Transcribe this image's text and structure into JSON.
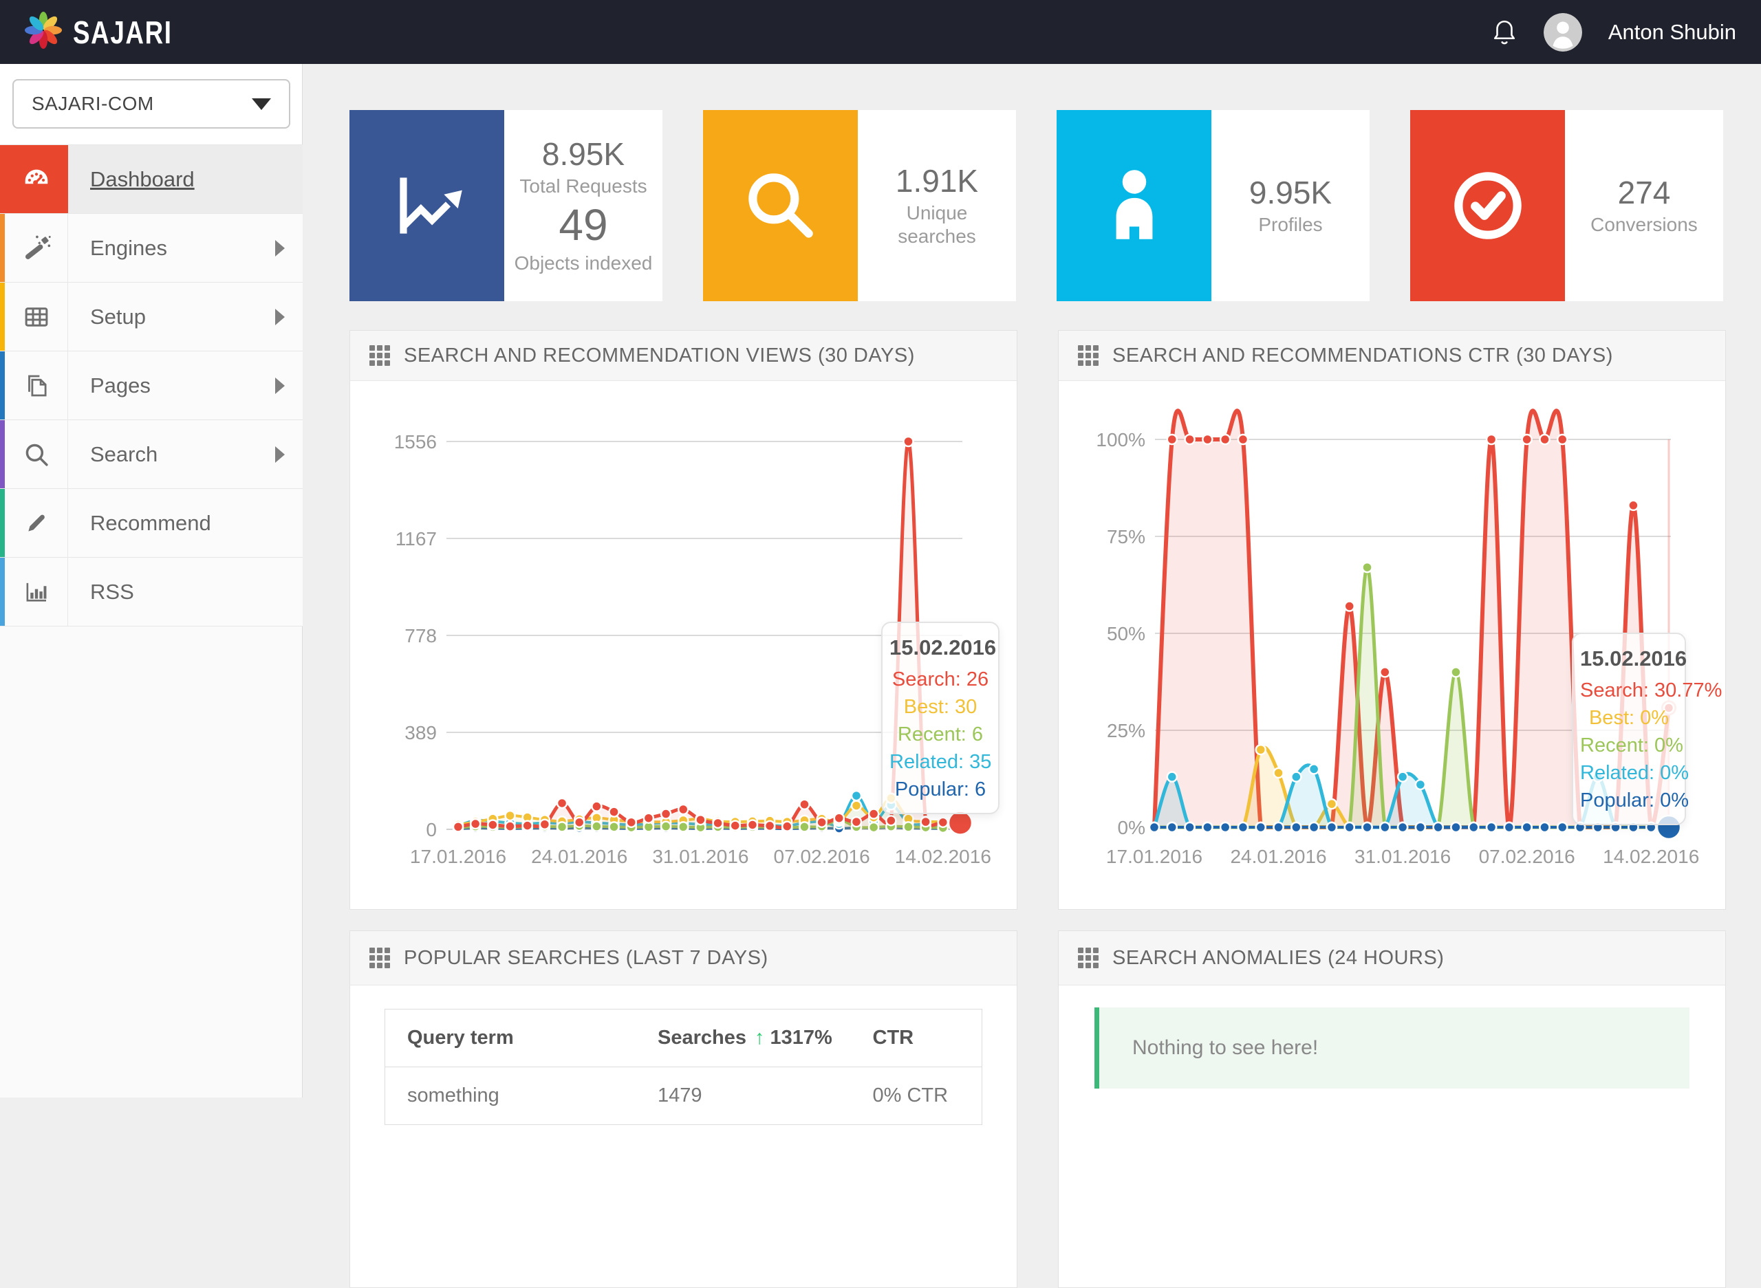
{
  "topbar": {
    "brand": "SAJARI",
    "user_name": "Anton Shubin",
    "bell_icon": "bell-icon",
    "avatar_icon": "avatar",
    "logo_icon": "sajari-pinwheel-logo"
  },
  "sidebar": {
    "project_selector": {
      "value": "SAJARI-COM",
      "chevron_icon": "chevron-down-icon"
    },
    "items": [
      {
        "label": "Dashboard",
        "icon": "gauge-icon",
        "color": "#e8472d",
        "active": true,
        "has_submenu": false
      },
      {
        "label": "Engines",
        "icon": "wand-icon",
        "color": "#f08c2b",
        "active": false,
        "has_submenu": true
      },
      {
        "label": "Setup",
        "icon": "table-icon",
        "color": "#f7b50c",
        "active": false,
        "has_submenu": true
      },
      {
        "label": "Pages",
        "icon": "pages-icon",
        "color": "#2478bd",
        "active": false,
        "has_submenu": true
      },
      {
        "label": "Search",
        "icon": "search-icon",
        "color": "#7e57c2",
        "active": false,
        "has_submenu": true
      },
      {
        "label": "Recommend",
        "icon": "pencil-icon",
        "color": "#26b488",
        "active": false,
        "has_submenu": false
      },
      {
        "label": "RSS",
        "icon": "bar-chart-icon",
        "color": "#4aa3dc",
        "active": false,
        "has_submenu": false
      }
    ]
  },
  "stats": [
    {
      "icon": "line-chart-icon",
      "color": "#3a5795",
      "rows": [
        {
          "value": "8.95K",
          "label": "Total Requests"
        },
        {
          "value": "49",
          "label": "Objects indexed",
          "big": true
        }
      ]
    },
    {
      "icon": "search-icon",
      "color": "#f7a817",
      "rows": [
        {
          "value": "1.91K",
          "label": "Unique searches"
        }
      ]
    },
    {
      "icon": "person-icon",
      "color": "#05b8e8",
      "rows": [
        {
          "value": "9.95K",
          "label": "Profiles"
        }
      ]
    },
    {
      "icon": "check-circle-icon",
      "color": "#e8432c",
      "rows": [
        {
          "value": "274",
          "label": "Conversions"
        }
      ]
    }
  ],
  "chart_data": [
    {
      "type": "line",
      "title": "SEARCH AND RECOMMENDATION VIEWS (30 DAYS)",
      "header_icon": "grid-icon",
      "x": [
        "17.01.2016",
        "18.01.2016",
        "19.01.2016",
        "20.01.2016",
        "21.01.2016",
        "22.01.2016",
        "23.01.2016",
        "24.01.2016",
        "25.01.2016",
        "26.01.2016",
        "27.01.2016",
        "28.01.2016",
        "29.01.2016",
        "30.01.2016",
        "31.01.2016",
        "01.02.2016",
        "02.02.2016",
        "03.02.2016",
        "04.02.2016",
        "05.02.2016",
        "06.02.2016",
        "07.02.2016",
        "08.02.2016",
        "09.02.2016",
        "10.02.2016",
        "11.02.2016",
        "12.02.2016",
        "13.02.2016",
        "14.02.2016",
        "15.02.2016"
      ],
      "x_tick_labels": [
        "17.01.2016",
        "24.01.2016",
        "31.01.2016",
        "07.02.2016",
        "14.02.2016"
      ],
      "ylim": [
        0,
        1556
      ],
      "yticks": [
        {
          "value": 0,
          "label": "0"
        },
        {
          "value": 389,
          "label": "389"
        },
        {
          "value": 778,
          "label": "778"
        },
        {
          "value": 1167,
          "label": "1167"
        },
        {
          "value": 1556,
          "label": "1556"
        }
      ],
      "grid": true,
      "legend": false,
      "series": [
        {
          "name": "Search",
          "color": "#e74c3c",
          "fill": true,
          "values": [
            10,
            22,
            18,
            12,
            15,
            20,
            105,
            28,
            92,
            70,
            28,
            45,
            62,
            80,
            38,
            25,
            15,
            18,
            14,
            12,
            100,
            28,
            45,
            30,
            62,
            35,
            1556,
            30,
            28,
            26
          ]
        },
        {
          "name": "Best",
          "color": "#f2c138",
          "fill": true,
          "values": [
            18,
            30,
            42,
            55,
            48,
            38,
            32,
            40,
            46,
            38,
            32,
            30,
            30,
            36,
            42,
            32,
            30,
            32,
            34,
            30,
            36,
            42,
            32,
            95,
            48,
            125,
            42,
            32,
            30,
            30
          ]
        },
        {
          "name": "Recent",
          "color": "#9cc659",
          "fill": true,
          "values": [
            6,
            12,
            10,
            8,
            10,
            12,
            10,
            14,
            12,
            10,
            8,
            10,
            12,
            10,
            8,
            10,
            8,
            10,
            8,
            6,
            10,
            12,
            38,
            10,
            8,
            12,
            10,
            8,
            6,
            6
          ]
        },
        {
          "name": "Related",
          "color": "#31b7d9",
          "fill": true,
          "values": [
            14,
            36,
            32,
            26,
            22,
            26,
            24,
            30,
            26,
            22,
            18,
            22,
            26,
            24,
            20,
            18,
            16,
            18,
            16,
            14,
            26,
            32,
            22,
            135,
            32,
            98,
            26,
            20,
            16,
            35
          ]
        },
        {
          "name": "Popular",
          "color": "#1f65ad",
          "fill": false,
          "values": [
            2,
            5,
            4,
            3,
            4,
            5,
            4,
            6,
            5,
            4,
            3,
            4,
            5,
            4,
            3,
            4,
            3,
            4,
            3,
            2,
            4,
            5,
            4,
            6,
            5,
            8,
            5,
            4,
            3,
            6
          ]
        }
      ],
      "end_dot": {
        "series": "Search",
        "r": 17
      },
      "tooltip": {
        "date": "15.02.2016",
        "rows": [
          {
            "label": "Search",
            "value": "26",
            "color": "#e74c3c"
          },
          {
            "label": "Best",
            "value": "30",
            "color": "#f2c138"
          },
          {
            "label": "Recent",
            "value": "6",
            "color": "#9cc659"
          },
          {
            "label": "Related",
            "value": "35",
            "color": "#31b7d9"
          },
          {
            "label": "Popular",
            "value": "6",
            "color": "#1f65ad"
          }
        ]
      }
    },
    {
      "type": "line",
      "title": "SEARCH AND RECOMMENDATIONS CTR (30 DAYS)",
      "header_icon": "grid-icon",
      "x": [
        "17.01.2016",
        "18.01.2016",
        "19.01.2016",
        "20.01.2016",
        "21.01.2016",
        "22.01.2016",
        "23.01.2016",
        "24.01.2016",
        "25.01.2016",
        "26.01.2016",
        "27.01.2016",
        "28.01.2016",
        "29.01.2016",
        "30.01.2016",
        "31.01.2016",
        "01.02.2016",
        "02.02.2016",
        "03.02.2016",
        "04.02.2016",
        "05.02.2016",
        "06.02.2016",
        "07.02.2016",
        "08.02.2016",
        "09.02.2016",
        "10.02.2016",
        "11.02.2016",
        "12.02.2016",
        "13.02.2016",
        "14.02.2016",
        "15.02.2016"
      ],
      "x_tick_labels": [
        "17.01.2016",
        "24.01.2016",
        "31.01.2016",
        "07.02.2016",
        "14.02.2016"
      ],
      "ylim": [
        0,
        100
      ],
      "yticks": [
        {
          "value": 0,
          "label": "0%"
        },
        {
          "value": 25,
          "label": "25%"
        },
        {
          "value": 50,
          "label": "50%"
        },
        {
          "value": 75,
          "label": "75%"
        },
        {
          "value": 100,
          "label": "100%"
        }
      ],
      "grid": true,
      "legend": false,
      "series": [
        {
          "name": "Search",
          "color": "#e74c3c",
          "fill": true,
          "values": [
            0,
            100,
            100,
            100,
            100,
            100,
            0,
            0,
            0,
            0,
            0,
            57,
            0,
            40,
            0,
            0,
            0,
            0,
            0,
            100,
            0,
            100,
            100,
            100,
            0,
            0,
            0,
            83,
            0,
            30.77
          ]
        },
        {
          "name": "Best",
          "color": "#f2c138",
          "fill": true,
          "values": [
            0,
            0,
            0,
            0,
            0,
            0,
            20,
            14,
            0,
            0,
            6,
            0,
            0,
            0,
            0,
            0,
            0,
            0,
            0,
            0,
            0,
            0,
            0,
            0,
            0,
            0,
            0,
            0,
            0,
            0
          ]
        },
        {
          "name": "Related",
          "color": "#31b7d9",
          "fill": true,
          "values": [
            0,
            13,
            0,
            0,
            0,
            0,
            0,
            0,
            13,
            15,
            0,
            0,
            0,
            0,
            13,
            11,
            0,
            0,
            0,
            0,
            0,
            0,
            0,
            0,
            0,
            13,
            0,
            0,
            0,
            0
          ]
        },
        {
          "name": "Recent",
          "color": "#9cc659",
          "fill": true,
          "values": [
            0,
            0,
            0,
            0,
            0,
            0,
            0,
            0,
            0,
            0,
            0,
            0,
            67,
            0,
            0,
            0,
            0,
            40,
            0,
            0,
            0,
            0,
            0,
            0,
            0,
            0,
            0,
            0,
            0,
            0
          ]
        },
        {
          "name": "Popular",
          "color": "#1f65ad",
          "fill": false,
          "values": [
            0,
            0,
            0,
            0,
            0,
            0,
            0,
            0,
            0,
            0,
            0,
            0,
            0,
            0,
            0,
            0,
            0,
            0,
            0,
            0,
            0,
            0,
            0,
            0,
            0,
            0,
            0,
            0,
            0,
            0
          ]
        }
      ],
      "end_dot": {
        "series": "Popular",
        "r": 17
      },
      "hover": {
        "series": "Search",
        "value": 30.77
      },
      "tooltip": {
        "date": "15.02.2016",
        "rows": [
          {
            "label": "Search",
            "value": "30.77%",
            "color": "#e74c3c"
          },
          {
            "label": "Best",
            "value": "0%",
            "color": "#f2c138"
          },
          {
            "label": "Recent",
            "value": "0%",
            "color": "#9cc659"
          },
          {
            "label": "Related",
            "value": "0%",
            "color": "#31b7d9"
          },
          {
            "label": "Popular",
            "value": "0%",
            "color": "#1f65ad"
          }
        ]
      }
    }
  ],
  "popular_searches": {
    "title": "POPULAR SEARCHES (LAST 7 DAYS)",
    "header_icon": "grid-icon",
    "columns": [
      "Query term",
      "Searches",
      "CTR"
    ],
    "searches_delta": {
      "arrow_icon": "up-arrow-icon",
      "arrow_glyph": "↑",
      "value": "1317%",
      "color": "#2ecc71"
    },
    "rows": [
      {
        "query": "something",
        "searches": "1479",
        "ctr": "0% CTR"
      }
    ]
  },
  "anomalies": {
    "title": "SEARCH ANOMALIES (24 HOURS)",
    "header_icon": "grid-icon",
    "message": "Nothing to see here!",
    "accent_color": "#3cb878"
  }
}
